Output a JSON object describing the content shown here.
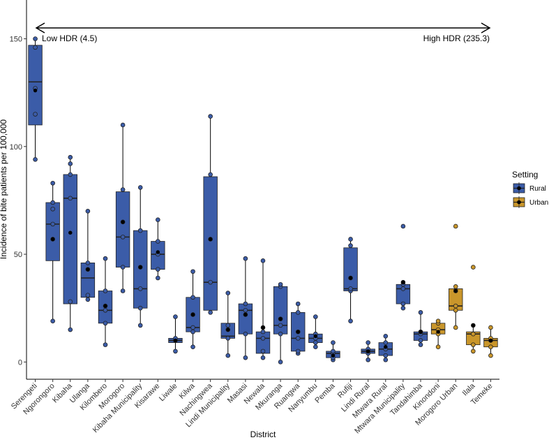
{
  "chart_data": {
    "type": "box",
    "title": "",
    "xlabel": "District",
    "ylabel": "Incidence of bite patients per 100,000",
    "ylim": [
      -8,
      168
    ],
    "yticks": [
      0,
      50,
      100,
      150
    ],
    "grid": false,
    "annotations": {
      "arrow": "double-headed",
      "left": "Low HDR (4.5)",
      "right": "High HDR (235.3)"
    },
    "legend": {
      "title": "Setting",
      "placement": "right",
      "entries": [
        {
          "name": "Rural",
          "color": "#3b5ca8"
        },
        {
          "name": "Urban",
          "color": "#c9962b"
        }
      ]
    },
    "categories": [
      {
        "name": "Serengeti",
        "setting": "Rural",
        "min": 94,
        "q1": 110,
        "median": 130,
        "q3": 147,
        "max": 150,
        "mean": 126,
        "points": [
          94,
          115,
          127,
          146,
          150
        ]
      },
      {
        "name": "Ngorongoro",
        "setting": "Rural",
        "min": 19,
        "q1": 47,
        "median": 64,
        "q3": 74,
        "max": 83,
        "mean": 57,
        "points": [
          19,
          57,
          64,
          71,
          74,
          83
        ]
      },
      {
        "name": "Kibaha",
        "setting": "Rural",
        "min": 15,
        "q1": 27,
        "median": 76,
        "q3": 87,
        "max": 95,
        "mean": 60,
        "points": [
          15,
          28,
          76,
          87,
          92,
          95
        ]
      },
      {
        "name": "Ulanga",
        "setting": "Rural",
        "min": 29,
        "q1": 30,
        "median": 39,
        "q3": 46,
        "max": 70,
        "mean": 43,
        "points": [
          29,
          31,
          43,
          46,
          70
        ]
      },
      {
        "name": "Kilombero",
        "setting": "Rural",
        "min": 8,
        "q1": 18,
        "median": 24,
        "q3": 33,
        "max": 48,
        "mean": 26,
        "points": [
          8,
          18,
          24,
          26,
          33,
          48
        ]
      },
      {
        "name": "Morogoro",
        "setting": "Rural",
        "min": 33,
        "q1": 44,
        "median": 58,
        "q3": 79,
        "max": 110,
        "mean": 65,
        "points": [
          33,
          44,
          58,
          65,
          80,
          110
        ]
      },
      {
        "name": "Kibaha Municipality",
        "setting": "Rural",
        "min": 17,
        "q1": 25,
        "median": 34,
        "q3": 61,
        "max": 81,
        "mean": 44,
        "points": [
          17,
          25,
          34,
          44,
          61,
          81
        ]
      },
      {
        "name": "Kisarawe",
        "setting": "Rural",
        "min": 39,
        "q1": 43,
        "median": 50,
        "q3": 56,
        "max": 66,
        "mean": 51,
        "points": [
          39,
          43,
          50,
          56,
          66
        ]
      },
      {
        "name": "Liwale",
        "setting": "Rural",
        "min": 5,
        "q1": 9,
        "median": 10,
        "q3": 11,
        "max": 21,
        "mean": 10,
        "points": [
          5,
          10,
          11,
          21
        ]
      },
      {
        "name": "Kilwa",
        "setting": "Rural",
        "min": 7,
        "q1": 14,
        "median": 16,
        "q3": 30,
        "max": 42,
        "mean": 22,
        "points": [
          7,
          14,
          16,
          22,
          30,
          42
        ]
      },
      {
        "name": "Nachingwea",
        "setting": "Rural",
        "min": 23,
        "q1": 24,
        "median": 37,
        "q3": 86,
        "max": 114,
        "mean": 57,
        "points": [
          23,
          37,
          57,
          87,
          114
        ]
      },
      {
        "name": "Lindi Municipality",
        "setting": "Rural",
        "min": 3,
        "q1": 11,
        "median": 12,
        "q3": 18,
        "max": 32,
        "mean": 15,
        "points": [
          3,
          11,
          15,
          17,
          32
        ]
      },
      {
        "name": "Masasi",
        "setting": "Rural",
        "min": 2,
        "q1": 13,
        "median": 24,
        "q3": 27,
        "max": 48,
        "mean": 22,
        "points": [
          2,
          13,
          22,
          24,
          27,
          48
        ]
      },
      {
        "name": "Newala",
        "setting": "Rural",
        "min": 2,
        "q1": 4,
        "median": 11,
        "q3": 14,
        "max": 47,
        "mean": 16,
        "points": [
          2,
          5,
          11,
          14,
          16,
          47
        ]
      },
      {
        "name": "Mkuranga",
        "setting": "Rural",
        "min": 0,
        "q1": 13,
        "median": 17,
        "q3": 35,
        "max": 36,
        "mean": 20,
        "points": [
          0,
          13,
          17,
          20,
          35,
          36
        ]
      },
      {
        "name": "Ruangwa",
        "setting": "Rural",
        "min": 4,
        "q1": 5,
        "median": 11,
        "q3": 23,
        "max": 27,
        "mean": 14,
        "points": [
          4,
          5,
          11,
          14,
          23,
          27
        ]
      },
      {
        "name": "Nanyumbu",
        "setting": "Rural",
        "min": 7,
        "q1": 9,
        "median": 11,
        "q3": 13,
        "max": 21,
        "mean": 12,
        "points": [
          7,
          9,
          11,
          13,
          21
        ]
      },
      {
        "name": "Pemba",
        "setting": "Rural",
        "min": 1,
        "q1": 2,
        "median": 4,
        "q3": 5,
        "max": 9,
        "mean": 3,
        "points": [
          1,
          2,
          4,
          5,
          9
        ]
      },
      {
        "name": "Rufiji",
        "setting": "Rural",
        "min": 19,
        "q1": 33,
        "median": 34,
        "q3": 53,
        "max": 57,
        "mean": 39,
        "points": [
          19,
          33,
          34,
          39,
          54,
          57
        ]
      },
      {
        "name": "Lindi Rural",
        "setting": "Rural",
        "min": 1,
        "q1": 4,
        "median": 5,
        "q3": 6,
        "max": 9,
        "mean": 5,
        "points": [
          1,
          4,
          5,
          6,
          9
        ]
      },
      {
        "name": "Mtwara Rural",
        "setting": "Rural",
        "min": 1,
        "q1": 3,
        "median": 6,
        "q3": 9,
        "max": 12,
        "mean": 7,
        "points": [
          1,
          3,
          6,
          9,
          12
        ]
      },
      {
        "name": "Mtwara Municipality",
        "setting": "Rural",
        "min": 25,
        "q1": 27,
        "median": 34,
        "q3": 36,
        "max": 37,
        "mean": 37,
        "points": [
          25,
          27,
          34,
          36,
          37,
          63
        ]
      },
      {
        "name": "Tandahimba",
        "setting": "Rural",
        "min": 8,
        "q1": 10,
        "median": 13,
        "q3": 14,
        "max": 23,
        "mean": 14,
        "points": [
          8,
          10,
          13,
          14,
          23
        ]
      },
      {
        "name": "Kinondoni",
        "setting": "Urban",
        "min": 7,
        "q1": 13,
        "median": 15,
        "q3": 18,
        "max": 19,
        "mean": 14,
        "points": [
          7,
          13,
          15,
          18,
          19
        ]
      },
      {
        "name": "Morogoro Urban",
        "setting": "Urban",
        "min": 16,
        "q1": 24,
        "median": 26,
        "q3": 34,
        "max": 35,
        "mean": 33,
        "points": [
          16,
          24,
          26,
          33,
          35,
          63
        ]
      },
      {
        "name": "Ilala",
        "setting": "Urban",
        "min": 5,
        "q1": 8,
        "median": 13,
        "q3": 14,
        "max": 17,
        "mean": 17,
        "points": [
          5,
          8,
          13,
          17,
          44
        ]
      },
      {
        "name": "Temeke",
        "setting": "Urban",
        "min": 3,
        "q1": 7,
        "median": 10,
        "q3": 11,
        "max": 16,
        "mean": 10,
        "points": [
          3,
          7,
          10,
          11,
          16
        ]
      }
    ]
  }
}
